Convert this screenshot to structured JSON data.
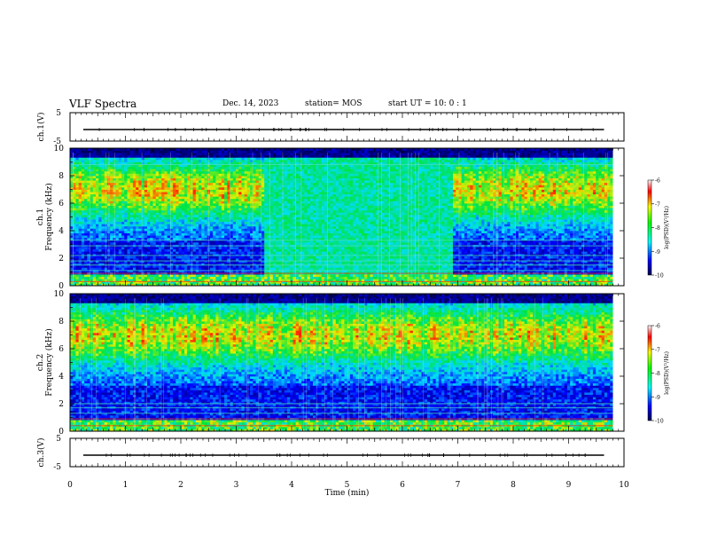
{
  "header": {
    "title": "VLF Spectra",
    "date": "Dec. 14, 2023",
    "station": "station= MOS",
    "start": "start  UT =   10: 0  : 1"
  },
  "chart_data": [
    {
      "type": "line",
      "name": "ch1-voltage",
      "ylabel": "ch.1(V)",
      "ylim": [
        -5,
        5
      ],
      "yticks": [
        "5",
        "-5"
      ],
      "xlim": [
        0,
        10
      ],
      "x": [
        0,
        9.8
      ],
      "y": [
        0,
        0
      ]
    },
    {
      "type": "heatmap",
      "name": "ch1-spectrogram",
      "ylabel": "ch.1\nFrequency (kHz)",
      "ylim": [
        0,
        10
      ],
      "yticks": [
        "0",
        "2",
        "4",
        "6",
        "8",
        "10"
      ],
      "xlim": [
        0,
        10
      ],
      "colorbar": {
        "label": "log(PSD)(V²/Hz)",
        "ticks": [
          "-6",
          "-7",
          "-8",
          "-9",
          "-10"
        ],
        "range": [
          -10,
          -6
        ]
      },
      "bands_khz": [
        0.3,
        0.9,
        1.1,
        1.5,
        1.8,
        2.2,
        2.9,
        3.3,
        8.8
      ],
      "quiet_intervals_min": [
        [
          3.5,
          6.9
        ]
      ],
      "data_end_min": 9.8
    },
    {
      "type": "heatmap",
      "name": "ch2-spectrogram",
      "ylabel": "ch.2\nFrequency (kHz)",
      "ylim": [
        0,
        10
      ],
      "yticks": [
        "0",
        "2",
        "4",
        "6",
        "8",
        "10"
      ],
      "xlim": [
        0,
        10
      ],
      "colorbar": {
        "label": "log(PSD)(V²/Hz)",
        "ticks": [
          "-6",
          "-7",
          "-8",
          "-9",
          "-10"
        ],
        "range": [
          -10,
          -6
        ]
      },
      "bands_khz": [
        0.4,
        0.9,
        1.3,
        1.7,
        2.0
      ],
      "data_end_min": 9.8
    },
    {
      "type": "line",
      "name": "ch3-voltage",
      "ylabel": "ch.3(V)",
      "ylim": [
        -5,
        5
      ],
      "yticks": [
        "5",
        "-5"
      ],
      "xlim": [
        0,
        10
      ],
      "xticks": [
        "0",
        "1",
        "2",
        "3",
        "4",
        "5",
        "6",
        "7",
        "8",
        "9",
        "10"
      ],
      "xlabel": "Time (min)",
      "x": [
        0,
        9.8
      ],
      "y": [
        0,
        0
      ]
    }
  ],
  "colors": {
    "background": "#000000",
    "colormap": [
      "#000078",
      "#0000ff",
      "#00ffff",
      "#00ff00",
      "#ffff00",
      "#ff0000",
      "#ffffff"
    ]
  }
}
